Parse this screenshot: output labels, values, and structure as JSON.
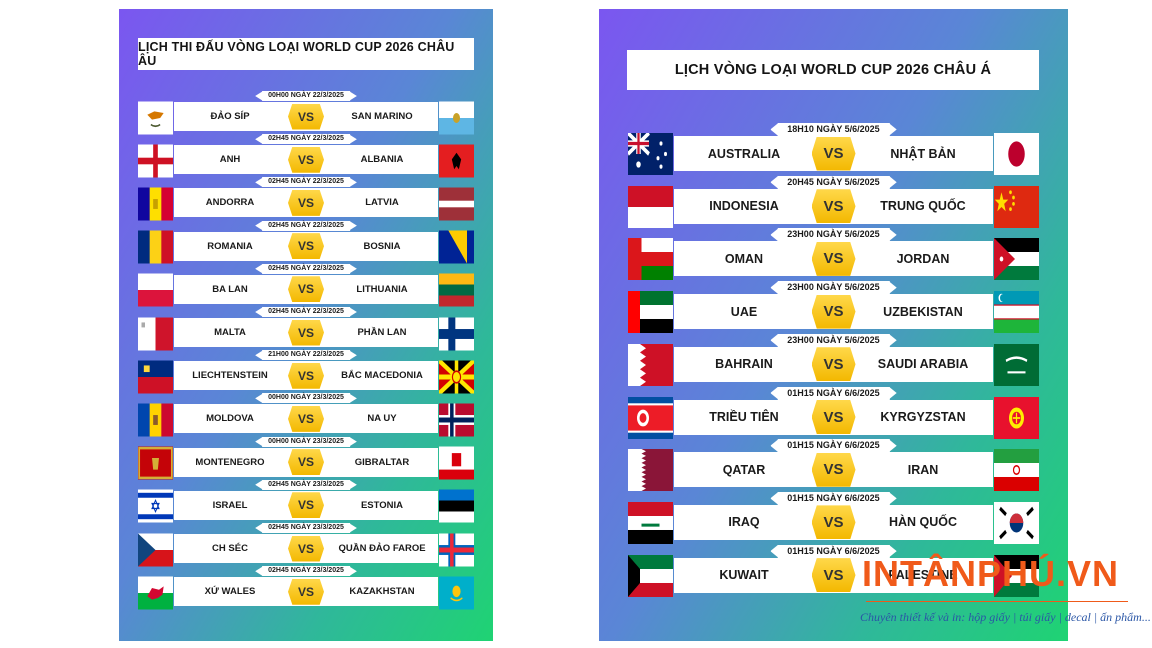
{
  "europe": {
    "title": "LỊCH THI ĐẤU VÒNG LOẠI WORLD CUP 2026 CHÂU ÂU",
    "vs_label": "VS",
    "matches": [
      {
        "date": "00H00 NGÀY 22/3/2025",
        "home": "ĐẢO SÍP",
        "away": "SAN MARINO"
      },
      {
        "date": "02H45 NGÀY 22/3/2025",
        "home": "ANH",
        "away": "ALBANIA"
      },
      {
        "date": "02H45 NGÀY 22/3/2025",
        "home": "ANDORRA",
        "away": "LATVIA"
      },
      {
        "date": "02H45 NGÀY 22/3/2025",
        "home": "ROMANIA",
        "away": "BOSNIA"
      },
      {
        "date": "02H45 NGÀY 22/3/2025",
        "home": "BA LAN",
        "away": "LITHUANIA"
      },
      {
        "date": "02H45 NGÀY 22/3/2025",
        "home": "MALTA",
        "away": "PHẦN LAN"
      },
      {
        "date": "21H00 NGÀY 22/3/2025",
        "home": "LIECHTENSTEIN",
        "away": "BẮC MACEDONIA"
      },
      {
        "date": "00H00 NGÀY 23/3/2025",
        "home": "MOLDOVA",
        "away": "NA UY"
      },
      {
        "date": "00H00 NGÀY 23/3/2025",
        "home": "MONTENEGRO",
        "away": "GIBRALTAR"
      },
      {
        "date": "02H45 NGÀY 23/3/2025",
        "home": "ISRAEL",
        "away": "ESTONIA"
      },
      {
        "date": "02H45 NGÀY 23/3/2025",
        "home": "CH SÉC",
        "away": "QUẦN ĐẢO FAROE"
      },
      {
        "date": "02H45 NGÀY 23/3/2025",
        "home": "XỨ WALES",
        "away": "KAZAKHSTAN"
      }
    ]
  },
  "asia": {
    "title": "LỊCH VÒNG LOẠI WORLD CUP 2026 CHÂU Á",
    "vs_label": "VS",
    "matches": [
      {
        "date": "18H10 NGÀY 5/6/2025",
        "home": "AUSTRALIA",
        "away": "NHẬT BẢN"
      },
      {
        "date": "20H45 NGÀY 5/6/2025",
        "home": "INDONESIA",
        "away": "TRUNG QUỐC"
      },
      {
        "date": "23H00 NGÀY 5/6/2025",
        "home": "OMAN",
        "away": "JORDAN"
      },
      {
        "date": "23H00 NGÀY 5/6/2025",
        "home": "UAE",
        "away": "UZBEKISTAN"
      },
      {
        "date": "23H00 NGÀY 5/6/2025",
        "home": "BAHRAIN",
        "away": "SAUDI ARABIA"
      },
      {
        "date": "01H15 NGÀY 6/6/2025",
        "home": "TRIỀU TIÊN",
        "away": "KYRGYZSTAN"
      },
      {
        "date": "01H15 NGÀY 6/6/2025",
        "home": "QATAR",
        "away": "IRAN"
      },
      {
        "date": "01H15 NGÀY 6/6/2025",
        "home": "IRAQ",
        "away": "HÀN QUỐC"
      },
      {
        "date": "01H15 NGÀY 6/6/2025",
        "home": "KUWAIT",
        "away": "PALESTINE"
      }
    ]
  },
  "brand": {
    "name": "INTÂNPHÚ.VN",
    "tagline": "Chuyên thiết kế và in: hộp giấy | túi giấy | decal | ấn phẩm..."
  },
  "colors": {
    "gradient_start": "#7b56f0",
    "gradient_end": "#1fd373",
    "vs_badge": "#f3b800",
    "brand": "#f05a1a"
  }
}
